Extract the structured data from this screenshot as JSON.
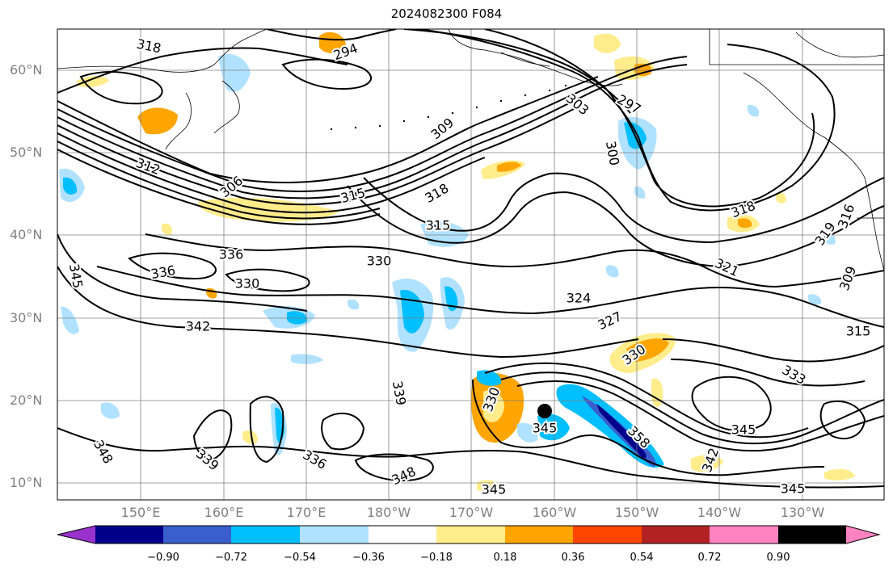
{
  "title": "2024082300 F084",
  "lat_labels": [
    "60°N",
    "50°N",
    "40°N",
    "30°N",
    "20°N",
    "10°N"
  ],
  "lon_labels": [
    "150°E",
    "160°E",
    "170°E",
    "180°W",
    "170°W",
    "160°W",
    "150°W",
    "140°W",
    "130°W"
  ],
  "contour_labels": [
    "318",
    "294",
    "303",
    "297",
    "309",
    "300",
    "312",
    "306",
    "315",
    "318",
    "315",
    "318",
    "316",
    "319",
    "336",
    "336",
    "330",
    "330",
    "345",
    "321",
    "309",
    "324",
    "327",
    "342",
    "315",
    "330",
    "333",
    "339",
    "330",
    "345",
    "345",
    "358",
    "348",
    "339",
    "336",
    "348",
    "345",
    "345",
    "342"
  ],
  "colorbar": {
    "ticks": [
      "−0.90",
      "−0.72",
      "−0.54",
      "−0.36",
      "−0.18",
      "0.18",
      "0.36",
      "0.54",
      "0.72",
      "0.90"
    ],
    "colors": [
      "#9932cc",
      "#00008b",
      "#3a5fcd",
      "#00bfff",
      "#b0e2ff",
      "#ffffff",
      "#ffec8b",
      "#ffa500",
      "#ff4500",
      "#b22222",
      "#ff83c0"
    ]
  },
  "marker": "storm-center-dot"
}
